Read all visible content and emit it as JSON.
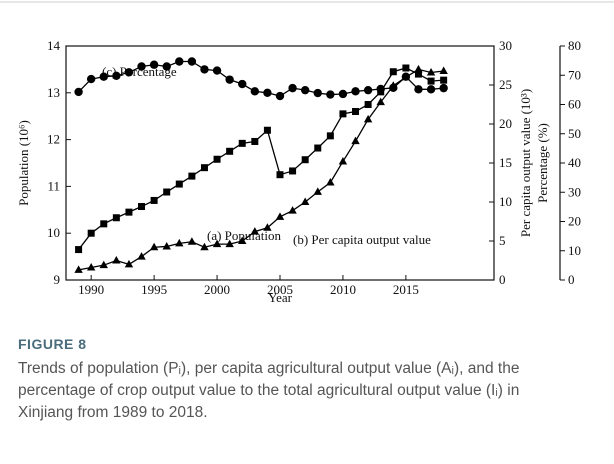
{
  "chart_data": {
    "type": "line",
    "x": [
      1989,
      1990,
      1991,
      1992,
      1993,
      1994,
      1995,
      1996,
      1997,
      1998,
      1999,
      2000,
      2001,
      2002,
      2003,
      2004,
      2005,
      2006,
      2007,
      2008,
      2009,
      2010,
      2011,
      2012,
      2013,
      2014,
      2015,
      2016,
      2017,
      2018
    ],
    "xlim": [
      1988,
      2022
    ],
    "xticks": [
      1990,
      1995,
      2000,
      2005,
      2010,
      2015
    ],
    "xlabel": "Year",
    "ylim": [
      9,
      14
    ],
    "yticks": [
      9,
      10,
      11,
      12,
      13,
      14
    ],
    "ylabel": "Population (10⁶)",
    "y2lim": [
      0,
      30
    ],
    "y2ticks": [
      0,
      5,
      10,
      15,
      20,
      25,
      30
    ],
    "y2label": "Per capita  output value (10³)",
    "y3lim": [
      0,
      80
    ],
    "y3ticks": [
      0,
      10,
      20,
      30,
      40,
      50,
      60,
      70,
      80
    ],
    "y3label": "Percentage (%)",
    "series": [
      {
        "name": "(a) Population",
        "color": "#000000",
        "marker": "square",
        "values": [
          9.65,
          10.0,
          10.2,
          10.33,
          10.45,
          10.57,
          10.7,
          10.88,
          11.05,
          11.22,
          11.4,
          11.58,
          11.75,
          11.92,
          11.96,
          12.2,
          11.25,
          11.33,
          11.57,
          11.82,
          12.08,
          12.55,
          12.6,
          12.75,
          13.02,
          13.45,
          13.53,
          13.4,
          13.25,
          13.27
        ]
      },
      {
        "name": "(b) Per capita output value",
        "color": "#000000",
        "marker": "triangle",
        "axis": "y2",
        "values": [
          1.3,
          1.6,
          1.9,
          2.5,
          2.0,
          3.0,
          4.2,
          4.3,
          4.7,
          4.9,
          4.2,
          4.6,
          4.6,
          5.0,
          6.2,
          6.7,
          8.1,
          8.9,
          10.0,
          11.3,
          12.5,
          15.2,
          17.8,
          20.6,
          22.8,
          24.9,
          26.0,
          27.0,
          26.6,
          26.8
        ]
      },
      {
        "name": "(c) Percentage",
        "color": "#000000",
        "marker": "circle",
        "axis": "y3",
        "values": [
          64.3,
          68.7,
          69.5,
          69.8,
          71.0,
          73.0,
          73.6,
          73.0,
          74.7,
          74.7,
          72.0,
          71.6,
          68.5,
          67.0,
          64.5,
          64.0,
          62.9,
          65.6,
          64.9,
          63.9,
          63.4,
          63.6,
          64.5,
          64.9,
          65.3,
          65.7,
          69.5,
          65.2,
          65.2,
          65.6
        ]
      }
    ]
  },
  "caption": {
    "label": "FIGURE 8",
    "text": "Trends of population (Pᵢ), per capita agricultural output value (Aᵢ), and the percentage of crop output value to the total agricultural output value (Iᵢ) in Xinjiang from 1989 to 2018."
  }
}
